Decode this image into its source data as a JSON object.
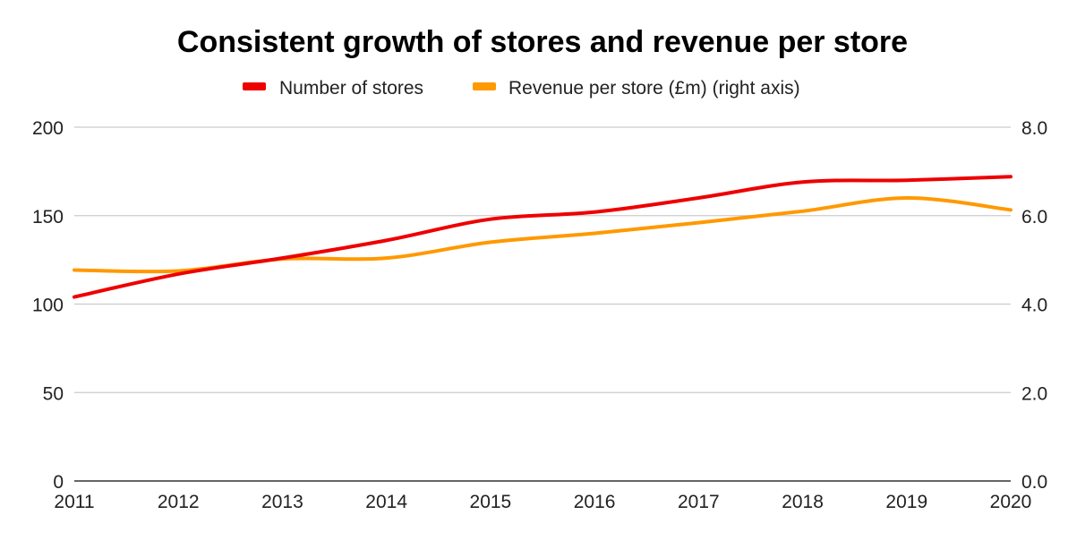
{
  "chart_data": {
    "type": "line",
    "title": "Consistent growth of stores and revenue per store",
    "x": [
      "2011",
      "2012",
      "2013",
      "2014",
      "2015",
      "2016",
      "2017",
      "2018",
      "2019",
      "2020"
    ],
    "series": [
      {
        "name": "Number of stores",
        "axis": "left",
        "color": "#ee0000",
        "values": [
          104,
          117,
          126,
          136,
          148,
          152,
          160,
          169,
          170,
          172
        ]
      },
      {
        "name": "Revenue per store (£m) (right axis)",
        "axis": "right",
        "color": "#ff9900",
        "values": [
          4.77,
          4.75,
          5.02,
          5.04,
          5.4,
          5.6,
          5.84,
          6.1,
          6.4,
          6.13
        ]
      }
    ],
    "ylim_left": [
      0,
      200
    ],
    "yticks_left": [
      "0",
      "50",
      "100",
      "150",
      "200"
    ],
    "ylim_right": [
      0,
      8
    ],
    "yticks_right": [
      "0.0",
      "2.0",
      "4.0",
      "6.0",
      "8.0"
    ],
    "xlabel": "",
    "ylabel": "",
    "legend_position": "top",
    "grid": true
  }
}
